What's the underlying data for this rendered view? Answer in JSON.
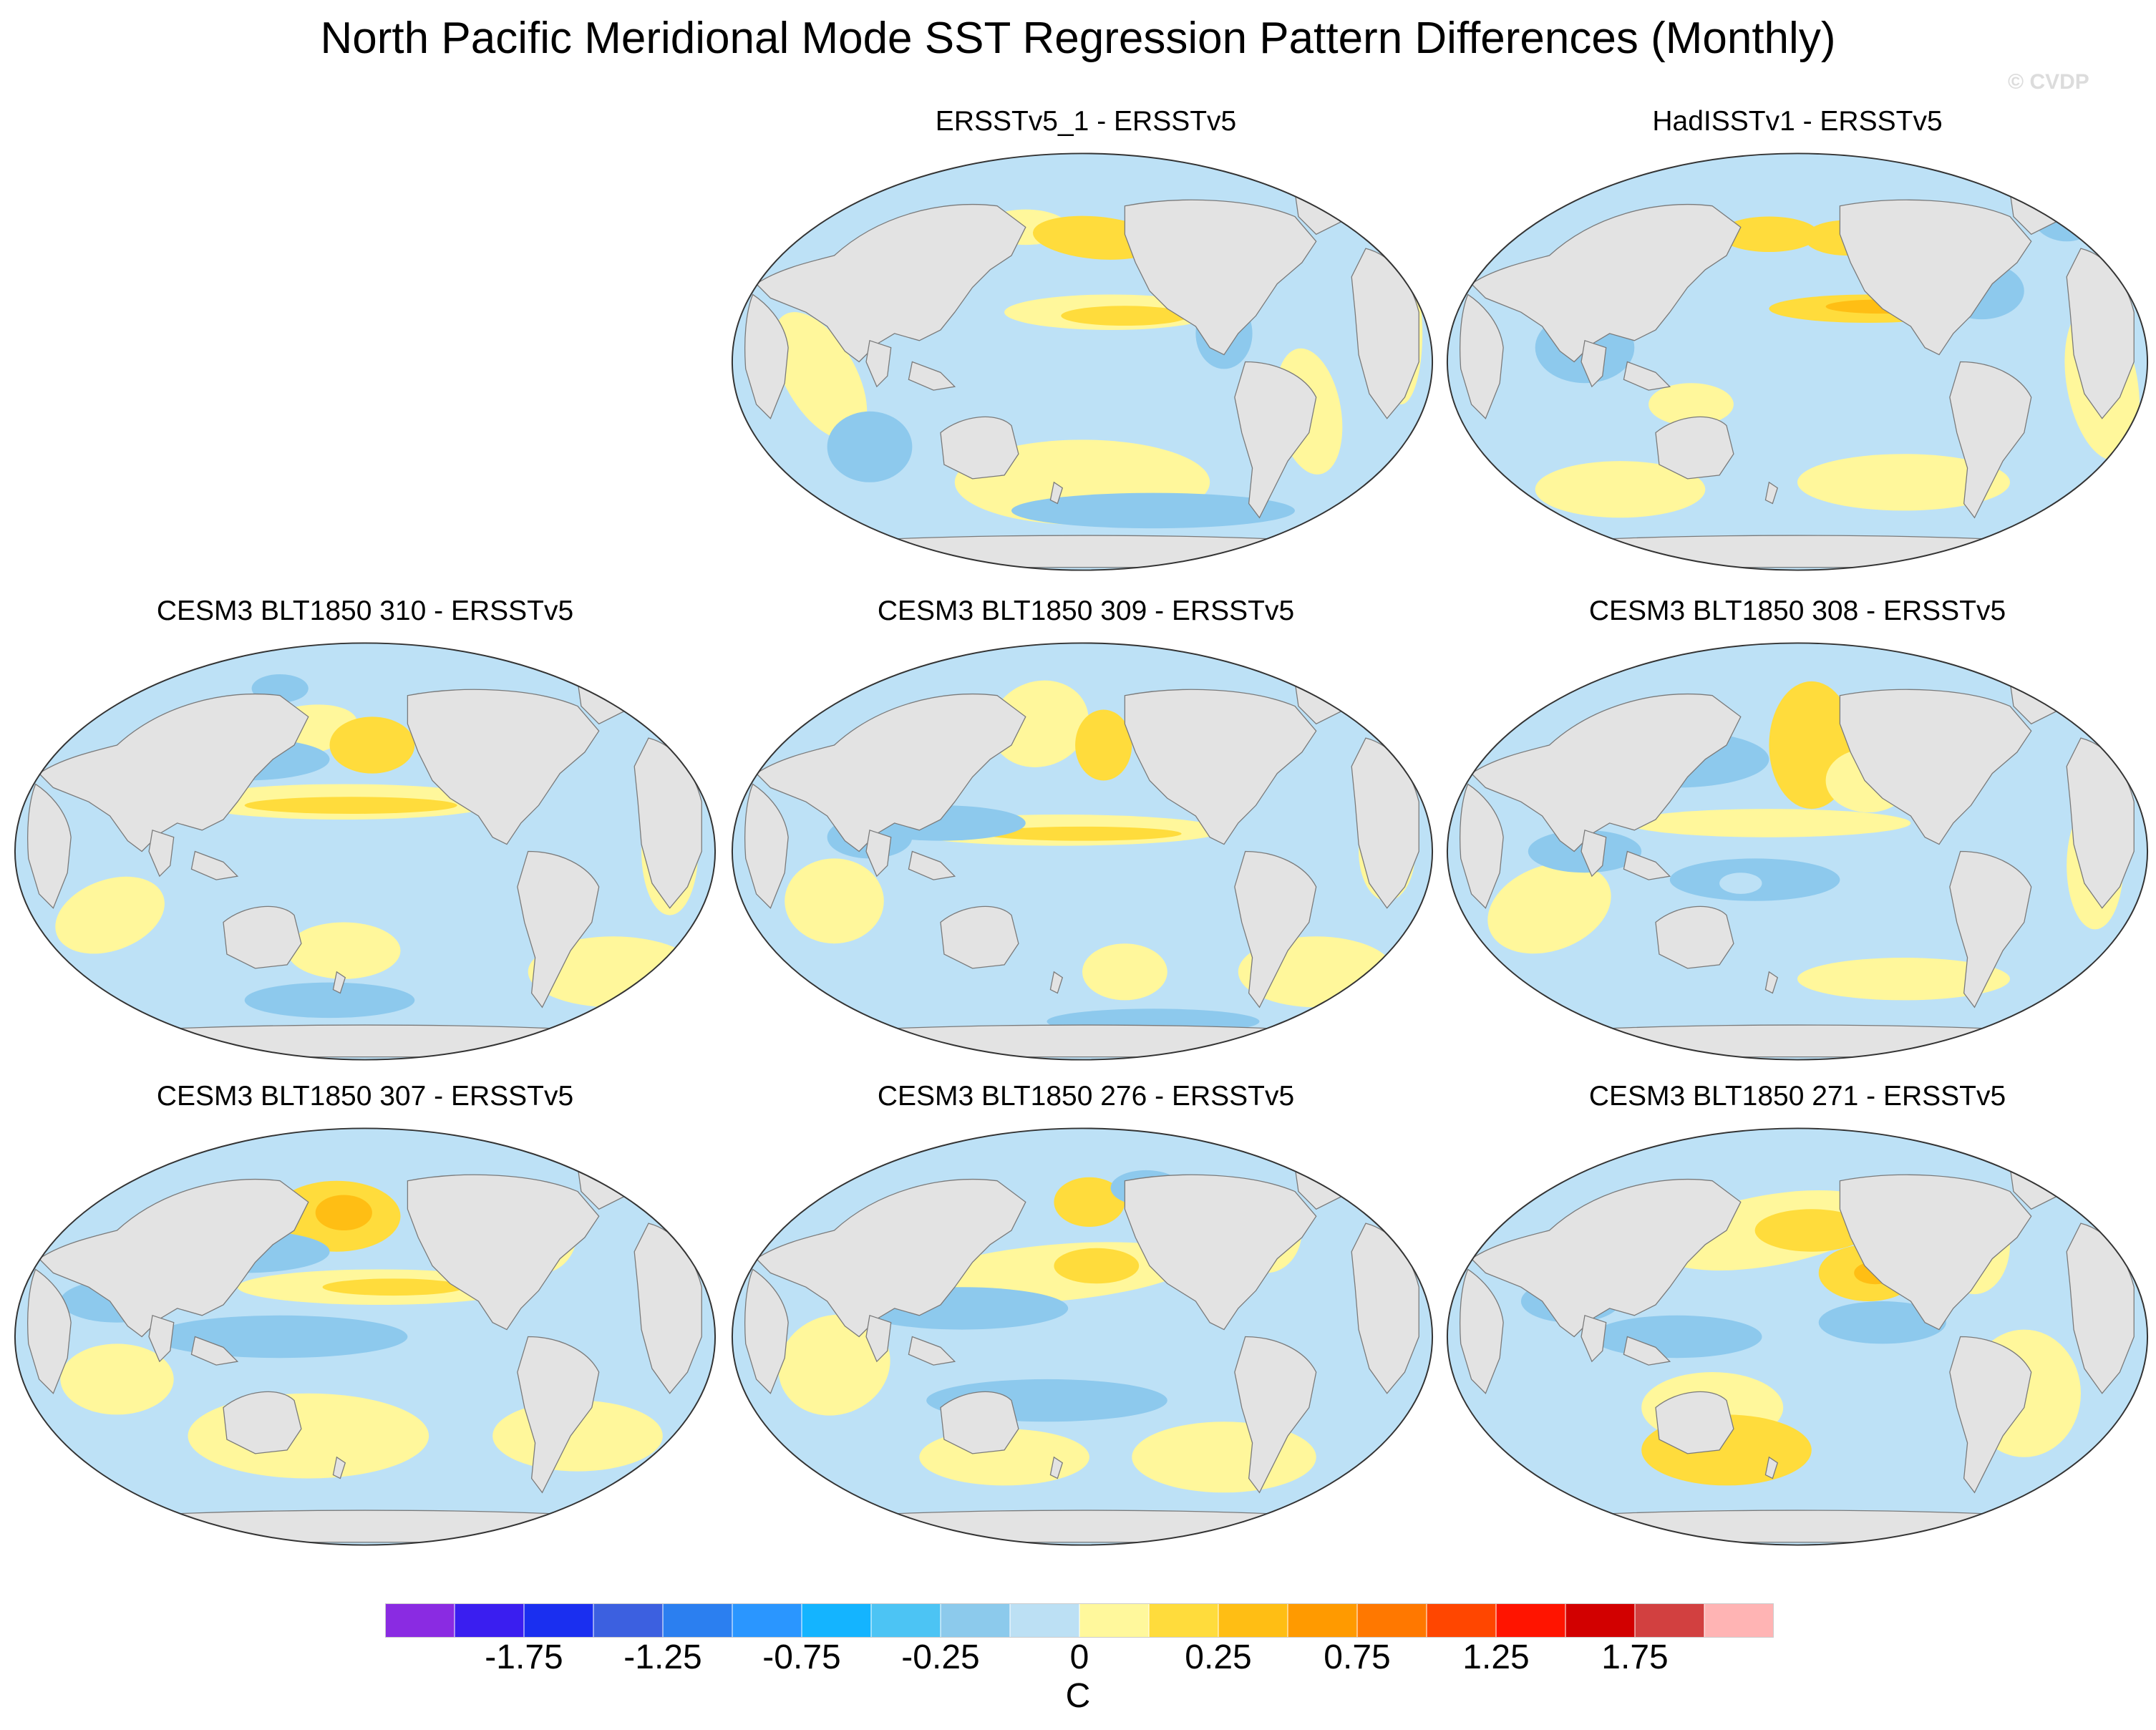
{
  "title": "North Pacific Meridional Mode SST Regression Pattern Differences (Monthly)",
  "watermark": "© CVDP",
  "panels": [
    {
      "label": "ERSSTv5_1 - ERSSTv5"
    },
    {
      "label": "HadISSTv1 - ERSSTv5"
    },
    {
      "label": "CESM3 BLT1850 310 - ERSSTv5"
    },
    {
      "label": "CESM3 BLT1850 309 - ERSSTv5"
    },
    {
      "label": "CESM3 BLT1850 308 - ERSSTv5"
    },
    {
      "label": "CESM3 BLT1850 307 - ERSSTv5"
    },
    {
      "label": "CESM3 BLT1850 276 - ERSSTv5"
    },
    {
      "label": "CESM3 BLT1850 271 - ERSSTv5"
    }
  ],
  "colorbar": {
    "unit": "C",
    "tick_labels": [
      "-1.75",
      "-1.25",
      "-0.75",
      "-0.25",
      "0",
      "0.25",
      "0.75",
      "1.25",
      "1.75"
    ],
    "colors": [
      "#8a2be2",
      "#3a1ef0",
      "#1a2ff0",
      "#3c60e0",
      "#2b7ff0",
      "#2a96ff",
      "#14b4ff",
      "#4cc4f4",
      "#8ccaec",
      "#bce0f4",
      "#fff89c",
      "#ffdc3c",
      "#ffbe14",
      "#ff9a00",
      "#ff7800",
      "#ff4600",
      "#ff1400",
      "#d20000",
      "#d24040",
      "#ffb4b4"
    ]
  },
  "map_colors": {
    "ocean_light_blue": "#bde1f6",
    "ocean_mid_blue": "#8dc9ed",
    "yellow_light": "#fff79b",
    "yellow_mid": "#ffdc3c",
    "orange": "#ffbe14",
    "land": "#e3e3e3"
  }
}
